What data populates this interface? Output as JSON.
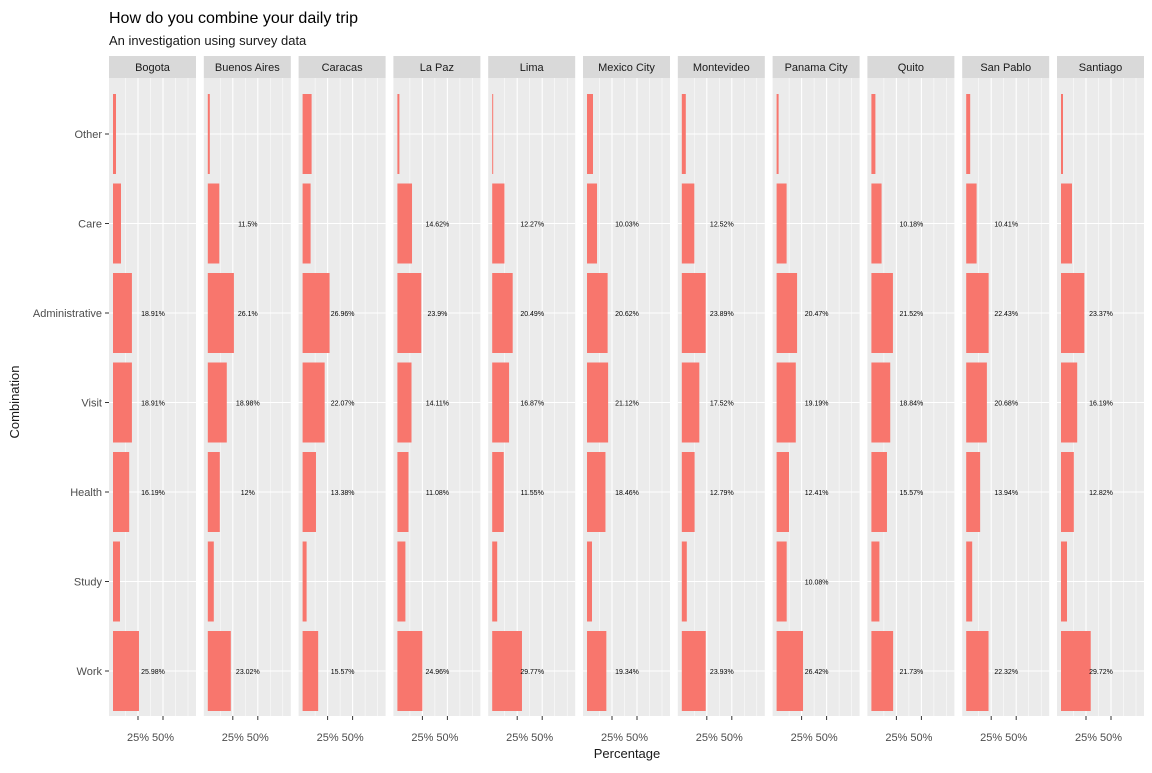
{
  "chart_data": {
    "type": "bar",
    "title": "How do you combine your daily trip",
    "subtitle": "An investigation using survey data",
    "xlabel": "Percentage",
    "ylabel": "Combination",
    "categories": [
      "Other",
      "Care",
      "Administrative",
      "Visit",
      "Health",
      "Study",
      "Work"
    ],
    "x_tick_labels": [
      "25%",
      "50%"
    ],
    "xlim": [
      0,
      100
    ],
    "bar_color": "#F8766D",
    "panel_background": "#EBEBEB",
    "strip_background": "#D9D9D9",
    "grid": true,
    "facets": [
      {
        "name": "Bogota",
        "values": [
          3,
          8,
          18.91,
          18.91,
          16.19,
          7,
          25.98
        ],
        "labels": [
          "",
          "",
          "18.91%",
          "18.91%",
          "16.19%",
          "",
          "25.98%"
        ]
      },
      {
        "name": "Buenos Aires",
        "values": [
          2,
          11.5,
          26.1,
          18.98,
          12,
          6,
          23.02
        ],
        "labels": [
          "",
          "11.5%",
          "26.1%",
          "18.98%",
          "12%",
          "",
          "23.02%"
        ]
      },
      {
        "name": "Caracas",
        "values": [
          9,
          8,
          26.96,
          22.07,
          13.38,
          4,
          15.57
        ],
        "labels": [
          "",
          "",
          "26.96%",
          "22.07%",
          "13.38%",
          "",
          "15.57%"
        ]
      },
      {
        "name": "La Paz",
        "values": [
          2,
          14.62,
          23.9,
          14.11,
          11.08,
          8,
          24.96
        ],
        "labels": [
          "",
          "14.62%",
          "23.9%",
          "14.11%",
          "11.08%",
          "",
          "24.96%"
        ]
      },
      {
        "name": "Lima",
        "values": [
          1,
          12.27,
          20.49,
          16.87,
          11.55,
          5,
          29.77
        ],
        "labels": [
          "",
          "12.27%",
          "20.49%",
          "16.87%",
          "11.55%",
          "",
          "29.77%"
        ]
      },
      {
        "name": "Mexico City",
        "values": [
          6,
          10.03,
          20.62,
          21.12,
          18.46,
          5,
          19.34
        ],
        "labels": [
          "",
          "10.03%",
          "20.62%",
          "21.12%",
          "18.46%",
          "",
          "19.34%"
        ]
      },
      {
        "name": "Montevideo",
        "values": [
          4,
          12.52,
          23.89,
          17.52,
          12.79,
          5,
          23.93
        ],
        "labels": [
          "",
          "12.52%",
          "23.89%",
          "17.52%",
          "12.79%",
          "",
          "23.93%"
        ]
      },
      {
        "name": "Panama City",
        "values": [
          2,
          10,
          20.47,
          19.19,
          12.41,
          10.08,
          26.42
        ],
        "labels": [
          "",
          "",
          "20.47%",
          "19.19%",
          "12.41%",
          "10.08%",
          "26.42%"
        ]
      },
      {
        "name": "Quito",
        "values": [
          4,
          10.18,
          21.52,
          18.84,
          15.57,
          8,
          21.73
        ],
        "labels": [
          "",
          "10.18%",
          "21.52%",
          "18.84%",
          "15.57%",
          "",
          "21.73%"
        ]
      },
      {
        "name": "San Pablo",
        "values": [
          4,
          10.41,
          22.43,
          20.68,
          13.94,
          6,
          22.32
        ],
        "labels": [
          "",
          "10.41%",
          "22.43%",
          "20.68%",
          "13.94%",
          "",
          "22.32%"
        ]
      },
      {
        "name": "Santiago",
        "values": [
          2,
          11,
          23.37,
          16.19,
          12.82,
          6,
          29.72
        ],
        "labels": [
          "",
          "",
          "23.37%",
          "16.19%",
          "12.82%",
          "",
          "29.72%"
        ]
      }
    ]
  }
}
